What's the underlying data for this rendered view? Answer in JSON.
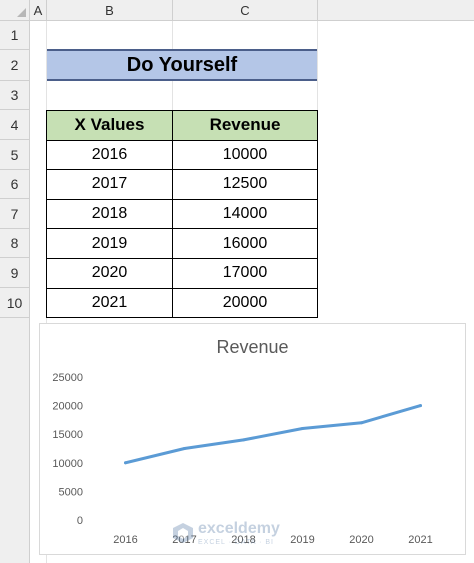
{
  "sheet": {
    "columns": [
      "A",
      "B",
      "C"
    ],
    "rows": [
      "1",
      "2",
      "3",
      "4",
      "5",
      "6",
      "7",
      "8",
      "9",
      "10"
    ]
  },
  "title_cell": "Do Yourself",
  "table": {
    "headers": [
      "X Values",
      "Revenue"
    ],
    "rows": [
      [
        "2016",
        "10000"
      ],
      [
        "2017",
        "12500"
      ],
      [
        "2018",
        "14000"
      ],
      [
        "2019",
        "16000"
      ],
      [
        "2020",
        "17000"
      ],
      [
        "2021",
        "20000"
      ]
    ]
  },
  "colors": {
    "title_fill": "#b4c6e7",
    "header_fill": "#c6e0b4",
    "series_line": "#5b9bd5"
  },
  "watermark": {
    "name": "exceldemy",
    "tagline": "EXCEL · DATA · BI"
  },
  "chart_data": {
    "type": "line",
    "title": "Revenue",
    "categories": [
      "2016",
      "2017",
      "2018",
      "2019",
      "2020",
      "2021"
    ],
    "series": [
      {
        "values": [
          10000,
          12500,
          14000,
          16000,
          17000,
          20000
        ]
      }
    ],
    "y_ticks": [
      "25000",
      "20000",
      "15000",
      "10000",
      "5000",
      "0"
    ],
    "ylim": [
      0,
      25000
    ],
    "grid": false,
    "legend": "none"
  }
}
